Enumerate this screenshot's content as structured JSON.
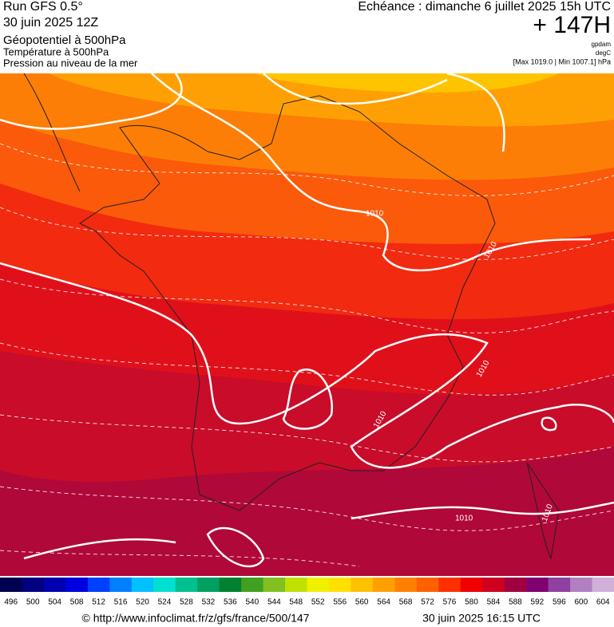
{
  "header": {
    "run": "Run GFS 0.5°",
    "date": "30 juin 2025 12Z",
    "field1": "Géopotentiel à 500hPa",
    "field2": "Température à 500hPa",
    "field3": "Pression au niveau de la mer",
    "valid": "Echéance : dimanche 6 juillet 2025 15h UTC",
    "lead": "+ 147H",
    "unit1": "gpdam",
    "unit2": "degC",
    "pressure_range": "[Max 1019.0 | Min 1007.1] hPa"
  },
  "contour_labels": [
    "1010",
    "1010",
    "1010",
    "1010",
    "1010",
    "1010"
  ],
  "legend": {
    "values": [
      496,
      500,
      504,
      508,
      512,
      516,
      520,
      524,
      528,
      532,
      536,
      540,
      544,
      548,
      552,
      556,
      560,
      564,
      568,
      572,
      576,
      580,
      584,
      588,
      592,
      596,
      600,
      604
    ],
    "colors": [
      "#000050",
      "#000080",
      "#0000b0",
      "#0000e0",
      "#0040ff",
      "#0080ff",
      "#00c0ff",
      "#00e0d0",
      "#00c090",
      "#00a060",
      "#008030",
      "#40a020",
      "#80c020",
      "#c0e000",
      "#f0f000",
      "#ffe000",
      "#ffc000",
      "#ffa000",
      "#ff8000",
      "#ff6000",
      "#ff3000",
      "#f00000",
      "#d00020",
      "#a00040",
      "#800070",
      "#9040a0",
      "#b080c0",
      "#d0b0d8"
    ]
  },
  "footer": {
    "source": "© http://www.infoclimat.fr/z/gfs/france/500/147",
    "generated": "30 juin 2025 16:15 UTC"
  }
}
